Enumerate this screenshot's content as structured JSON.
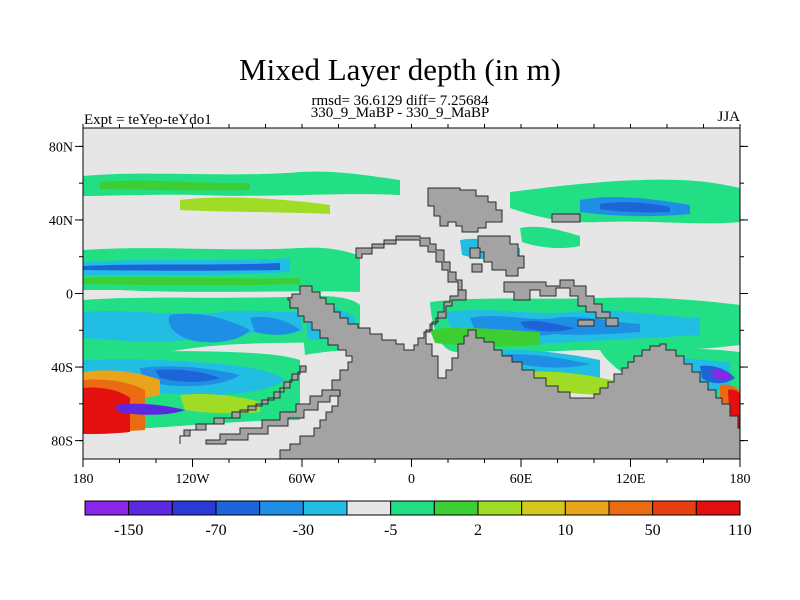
{
  "header": {
    "title": "Mixed Layer depth (in m)",
    "stats": "rmsd= 36.6129 diff= 7.25684",
    "subtitle": "330_9_MaBP - 330_9_MaBP",
    "left_label": "Expt = teYeo-teYdo1",
    "right_label": "JJA"
  },
  "map": {
    "projection": "equirectangular",
    "lon_range": [
      -180,
      180
    ],
    "lat_range": [
      -90,
      90
    ],
    "x_tick_labels": [
      "180",
      "120W",
      "60W",
      "0",
      "60E",
      "120E",
      "180"
    ],
    "y_tick_labels": [
      "80N",
      "40N",
      "0",
      "40S",
      "80S"
    ],
    "land_color": "#a3a3a3",
    "near_zero_color": "#e6e6e6"
  },
  "colorbar": {
    "labels": [
      "-150",
      "-70",
      "-30",
      "-5",
      "2",
      "10",
      "50",
      "110"
    ],
    "colors": [
      "#8a26e8",
      "#5c29e0",
      "#2a3ad6",
      "#1c64d8",
      "#1e8fe4",
      "#22bde2",
      "#e6e6e6",
      "#22df86",
      "#3dce33",
      "#a0dc26",
      "#d6c81c",
      "#e8a41a",
      "#ea6b12",
      "#e83f10",
      "#e41010"
    ]
  }
}
